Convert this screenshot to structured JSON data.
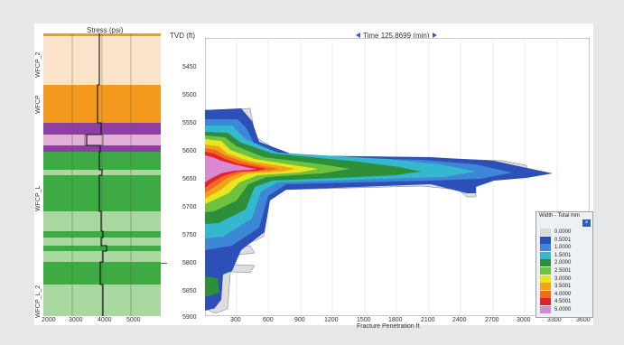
{
  "track": {
    "title": "Stress (psi)",
    "x_ticks": [
      "2000",
      "3000",
      "4000",
      "5000"
    ],
    "zones": [
      "WFCP_2",
      "WFCP",
      "WFCP_L",
      "WFCP_L_2"
    ]
  },
  "depth_axis": {
    "title": "TVD (ft)",
    "ticks": [
      "5450",
      "5500",
      "5550",
      "5600",
      "5650",
      "5700",
      "5750",
      "5800",
      "5850",
      "5900"
    ]
  },
  "time_bar": {
    "prev_icon": "triangle-left-icon",
    "label": "Time 125.8699 (min)",
    "next_icon": "triangle-right-icon"
  },
  "plot": {
    "x_ticks": [
      "300",
      "600",
      "900",
      "1200",
      "1500",
      "1800",
      "2100",
      "2400",
      "2700",
      "3000",
      "3300",
      "3600"
    ],
    "x_label": "Fracture Penetration ft"
  },
  "legend": {
    "title": "Width - Total mm",
    "close_icon": "close-icon",
    "close_glyph": "×",
    "items": [
      {
        "value": "0.0000",
        "color": "#d9d9d9"
      },
      {
        "value": "0.5001",
        "color": "#2c4fb8"
      },
      {
        "value": "1.0000",
        "color": "#3e86d6"
      },
      {
        "value": "1.5001",
        "color": "#33b8cf"
      },
      {
        "value": "2.0000",
        "color": "#2d8f3a"
      },
      {
        "value": "2.5001",
        "color": "#6ec23f"
      },
      {
        "value": "3.0000",
        "color": "#e9e61d"
      },
      {
        "value": "3.5001",
        "color": "#f0a41c"
      },
      {
        "value": "4.0000",
        "color": "#f26a1b"
      },
      {
        "value": "4.5001",
        "color": "#e3222b"
      },
      {
        "value": "5.0000",
        "color": "#d889d0"
      }
    ]
  }
}
